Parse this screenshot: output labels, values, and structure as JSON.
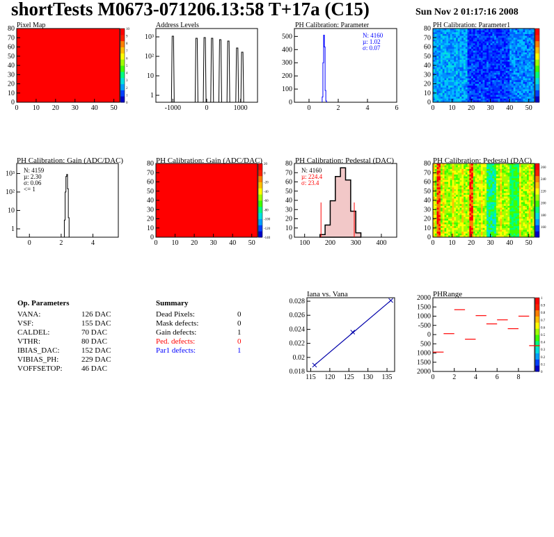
{
  "header": {
    "title": "shortTests M0673-071206.13:58 T+17a (C15)",
    "date": "Sun Nov  2 01:17:16 2008"
  },
  "colors": {
    "red": "#ff0000",
    "blue": "#0000ff",
    "hist": "#000000",
    "pedfill": "#cc6666"
  },
  "panels": {
    "pixelmap": {
      "title": "Pixel Map",
      "xticks": [
        "0",
        "10",
        "20",
        "30",
        "40",
        "50"
      ],
      "yticks": [
        "0",
        "10",
        "20",
        "30",
        "40",
        "50",
        "60",
        "70",
        "80"
      ],
      "zticks": [
        "10",
        "9",
        "8",
        "7",
        "6",
        "5",
        "4",
        "3",
        "2",
        "1",
        "0"
      ],
      "fill": "#ff0000"
    },
    "address": {
      "title": "Address Levels",
      "xticks": [
        "-1000",
        "0",
        "1000"
      ],
      "yticks": [
        "1",
        "10",
        "10²",
        "10³"
      ],
      "peaks": [
        -1000,
        -300,
        -60,
        160,
        400,
        640,
        900,
        1050
      ]
    },
    "phparam": {
      "title": "PH Calibration: Parameter",
      "xticks": [
        "0",
        "2",
        "4",
        "6"
      ],
      "yticks": [
        "0",
        "100",
        "200",
        "300",
        "400",
        "500"
      ],
      "stats": [
        "N: 4160",
        "µ: 1.02",
        "σ: 0.07"
      ]
    },
    "phparam1": {
      "title": "PH Calibration: Parameter1",
      "xticks": [
        "0",
        "10",
        "20",
        "30",
        "40",
        "50"
      ],
      "yticks": [
        "0",
        "10",
        "20",
        "30",
        "40",
        "50",
        "60",
        "70",
        "80"
      ]
    },
    "gain1": {
      "title": "PH Calibration: Gain (ADC/DAC)",
      "xticks": [
        "0",
        "2",
        "4"
      ],
      "yticks": [
        "1",
        "10",
        "10²",
        "10³"
      ],
      "stats": [
        "N: 4159",
        "µ: 2.30",
        "σ: 0.06",
        "<= 1"
      ]
    },
    "gain2": {
      "title": "PH Calibration: Gain (ADC/DAC)",
      "xticks": [
        "0",
        "10",
        "20",
        "30",
        "40",
        "50"
      ],
      "yticks": [
        "0",
        "10",
        "20",
        "30",
        "40",
        "50",
        "60",
        "70",
        "80"
      ],
      "zticks": [
        "20",
        "0",
        "-20",
        "-40",
        "-60",
        "-80",
        "-100",
        "-120",
        "-140"
      ],
      "fill": "#ff0000"
    },
    "ped1": {
      "title": "PH Calibration: Pedestal (DAC)",
      "xticks": [
        "100",
        "200",
        "300",
        "400"
      ],
      "yticks": [
        "0",
        "10",
        "20",
        "30",
        "40",
        "50",
        "60",
        "70",
        "80"
      ],
      "stats": [
        "N: 4160",
        "µ: 224.4",
        "σ: 23.4"
      ]
    },
    "ped2": {
      "title": "PH Calibration: Pedestal (DAC)",
      "xticks": [
        "0",
        "10",
        "20",
        "30",
        "40",
        "50"
      ],
      "yticks": [
        "0",
        "10",
        "20",
        "30",
        "40",
        "50",
        "60",
        "70",
        "80"
      ],
      "zticks": [
        "260",
        "240",
        "220",
        "200",
        "180",
        "160"
      ]
    },
    "iana": {
      "title": "Iana vs. Vana",
      "xticks": [
        "115",
        "120",
        "125",
        "130",
        "135"
      ],
      "yticks": [
        "0.018",
        "0.02",
        "0.022",
        "0.024",
        "0.026",
        "0.028"
      ]
    },
    "phrange": {
      "title": "PHRange",
      "xticks": [
        "0",
        "2",
        "4",
        "6",
        "8"
      ],
      "yticks": [
        "2000",
        "1500",
        "1000",
        "500",
        "0",
        "-500",
        "1000",
        "1500",
        "2000"
      ],
      "zticks": [
        "1",
        "0.9",
        "0.8",
        "0.7",
        "0.6",
        "0.5",
        "0.4",
        "0.3",
        "0.2",
        "0.1",
        "0"
      ]
    }
  },
  "chart_data": [
    {
      "type": "histogram",
      "title": "PH Calibration: Parameter",
      "x": [
        0.9,
        0.95,
        1.0,
        1.05,
        1.1,
        1.15
      ],
      "values": [
        40,
        300,
        510,
        420,
        90,
        10
      ],
      "xlim": [
        -1,
        6
      ],
      "ylim": [
        0,
        560
      ],
      "stats": {
        "N": 4160,
        "mean": 1.02,
        "sigma": 0.07
      }
    },
    {
      "type": "histogram",
      "title": "PH Calibration: Gain (ADC/DAC)",
      "x": [
        2.2,
        2.25,
        2.3,
        2.35,
        2.4,
        2.45
      ],
      "values": [
        3,
        100,
        700,
        900,
        150,
        4
      ],
      "xlim": [
        -0.8,
        5.6
      ],
      "ylog": true,
      "stats": {
        "N": 4159,
        "mean": 2.3,
        "sigma": 0.06
      }
    },
    {
      "type": "histogram",
      "title": "PH Calibration: Pedestal (DAC)",
      "x": [
        160,
        180,
        200,
        220,
        240,
        260,
        280,
        300
      ],
      "values": [
        3,
        14,
        42,
        70,
        80,
        66,
        30,
        5
      ],
      "xlim": [
        60,
        460
      ],
      "ylim": [
        0,
        85
      ],
      "stats": {
        "N": 4160,
        "mean": 224.4,
        "sigma": 23.4
      }
    },
    {
      "type": "line",
      "title": "Iana vs. Vana",
      "x": [
        116,
        126,
        136
      ],
      "y": [
        0.0189,
        0.0236,
        0.0281
      ],
      "xlim": [
        114,
        137
      ],
      "ylim": [
        0.018,
        0.0285
      ]
    },
    {
      "type": "scatter",
      "title": "PHRange",
      "x": [
        0,
        1,
        2,
        3,
        4,
        5,
        6,
        7,
        8,
        9
      ],
      "y": [
        -950,
        50,
        1350,
        -250,
        1030,
        580,
        800,
        320,
        1000,
        -600
      ],
      "xlim": [
        0,
        9.5
      ],
      "ylim": [
        -2000,
        2000
      ]
    }
  ],
  "op_params": {
    "title": "Op. Parameters",
    "rows": [
      {
        "k": "VANA:",
        "v": "126 DAC"
      },
      {
        "k": "VSF:",
        "v": "155 DAC"
      },
      {
        "k": "CALDEL:",
        "v": "70 DAC"
      },
      {
        "k": "VTHR:",
        "v": "80 DAC"
      },
      {
        "k": "IBIAS_DAC:",
        "v": "152 DAC"
      },
      {
        "k": "VIBIAS_PH:",
        "v": "229 DAC"
      },
      {
        "k": "VOFFSETOP:",
        "v": "46 DAC"
      }
    ]
  },
  "summary": {
    "title": "Summary",
    "rows": [
      {
        "k": "Dead Pixels:",
        "v": "0",
        "c": "#000000"
      },
      {
        "k": "Mask defects:",
        "v": "0",
        "c": "#000000"
      },
      {
        "k": "Gain defects:",
        "v": "1",
        "c": "#000000"
      },
      {
        "k": "Ped. defects:",
        "v": "0",
        "c": "#ff0000"
      },
      {
        "k": "Par1 defects:",
        "v": "1",
        "c": "#0000ff"
      }
    ]
  }
}
